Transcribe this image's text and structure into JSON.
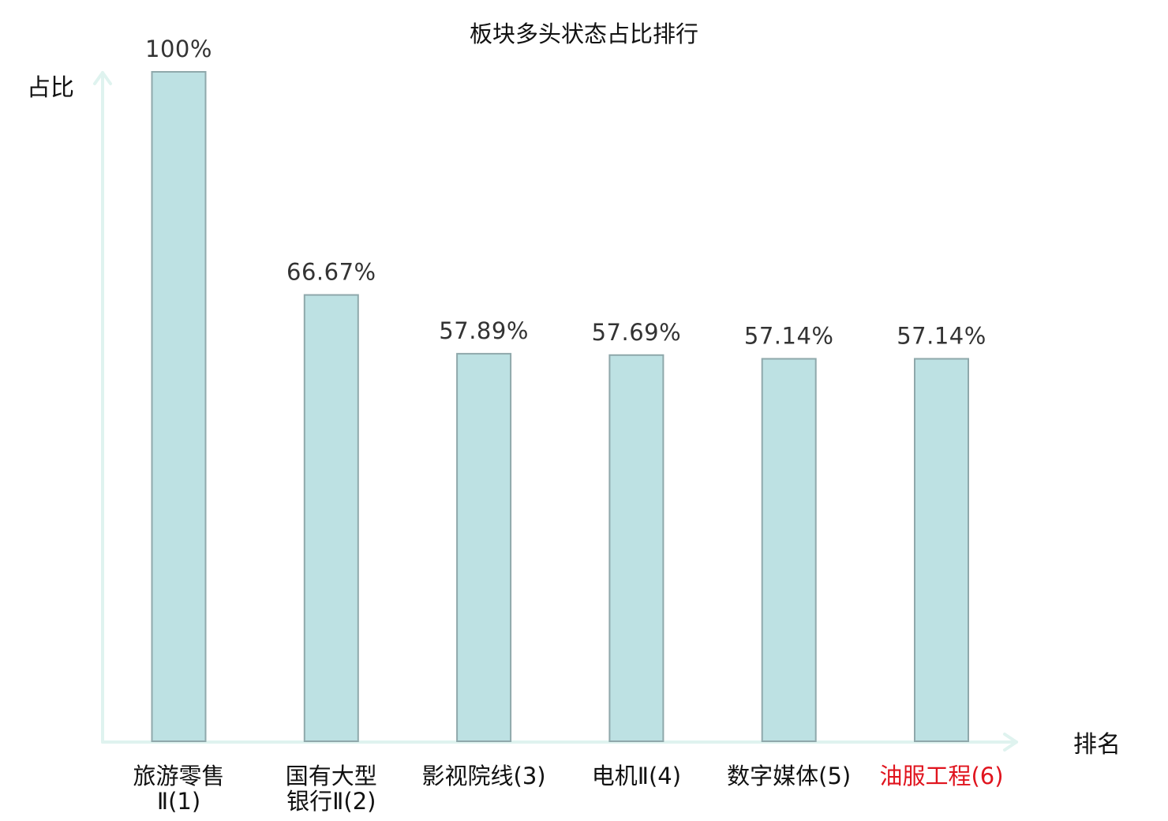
{
  "chart_data": {
    "type": "bar",
    "title": "板块多头状态占比排行",
    "ylabel": "占比",
    "xlabel": "排名",
    "ylim": [
      0,
      100
    ],
    "grid": false,
    "legend": "none",
    "categories": [
      {
        "lines": [
          "旅游零售",
          "Ⅱ(1)"
        ],
        "highlight": false
      },
      {
        "lines": [
          "国有大型",
          "银行Ⅱ(2)"
        ],
        "highlight": false
      },
      {
        "lines": [
          "影视院线(3)"
        ],
        "highlight": false
      },
      {
        "lines": [
          "电机Ⅱ(4)"
        ],
        "highlight": false
      },
      {
        "lines": [
          "数字媒体(5)"
        ],
        "highlight": false
      },
      {
        "lines": [
          "油服工程(6)"
        ],
        "highlight": true
      }
    ],
    "values": [
      100,
      66.67,
      57.89,
      57.69,
      57.14,
      57.14
    ],
    "value_labels": [
      "100%",
      "66.67%",
      "57.89%",
      "57.69%",
      "57.14%",
      "57.14%"
    ],
    "colors": {
      "bar_fill": "#bde1e3",
      "bar_stroke": "#8fa8ab",
      "axis": "#dff3ef",
      "highlight_text": "#e0141e"
    }
  }
}
